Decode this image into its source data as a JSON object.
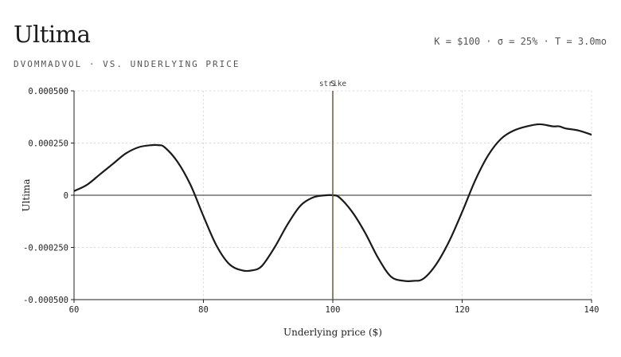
{
  "header": {
    "title": "Ultima",
    "subtitle": "DVOMMADVOL · VS. UNDERLYING PRICE",
    "params": "K = $100 · σ = 25% · T = 3.0mo"
  },
  "colors": {
    "curve": "#1a1a1a",
    "strike_line": "#6b5a3a",
    "zero_line": "#555555",
    "grid": "#d8d8d8",
    "axis": "#222222"
  },
  "chart_data": {
    "type": "line",
    "title": "Ultima",
    "xlabel": "Underlying price ($)",
    "ylabel": "Ultima",
    "xlim": [
      60,
      140
    ],
    "ylim": [
      -0.0005,
      0.0005
    ],
    "x_ticks": [
      60,
      80,
      100,
      120,
      140
    ],
    "x_tick_labels": [
      "60",
      "80",
      "100",
      "120",
      "140"
    ],
    "y_ticks": [
      0.0005,
      0.00025,
      0,
      -0.00025,
      -0.0005
    ],
    "y_tick_labels": [
      "0.000500",
      "0.000250",
      "0",
      "-0.000250",
      "-0.000500"
    ],
    "grid": true,
    "annotations": [
      {
        "label": "strike",
        "x": 100
      },
      {
        "label": "S",
        "x": 100
      }
    ],
    "series": [
      {
        "values_x": [
          60,
          62,
          64,
          66,
          68,
          70,
          72,
          73,
          74,
          76,
          78,
          80,
          82,
          84,
          86,
          87.5,
          89,
          91,
          93,
          95,
          97,
          99,
          100,
          101,
          103,
          105,
          107,
          109,
          111,
          112.5,
          114,
          116,
          118,
          120,
          122,
          124,
          126,
          128,
          130,
          132,
          134,
          135,
          136,
          138,
          140
        ],
        "values_y": [
          2e-05,
          5e-05,
          0.0001,
          0.00015,
          0.0002,
          0.00023,
          0.00024,
          0.00024,
          0.00023,
          0.00016,
          5e-05,
          -0.0001,
          -0.00024,
          -0.00033,
          -0.00036,
          -0.00036,
          -0.00034,
          -0.00025,
          -0.00014,
          -5e-05,
          -1e-05,
          0,
          0,
          -1e-05,
          -8e-05,
          -0.00018,
          -0.0003,
          -0.00039,
          -0.00041,
          -0.00041,
          -0.0004,
          -0.00033,
          -0.00022,
          -8e-05,
          7e-05,
          0.00019,
          0.00027,
          0.00031,
          0.00033,
          0.00034,
          0.00033,
          0.00033,
          0.00032,
          0.00031,
          0.00029
        ]
      }
    ]
  }
}
